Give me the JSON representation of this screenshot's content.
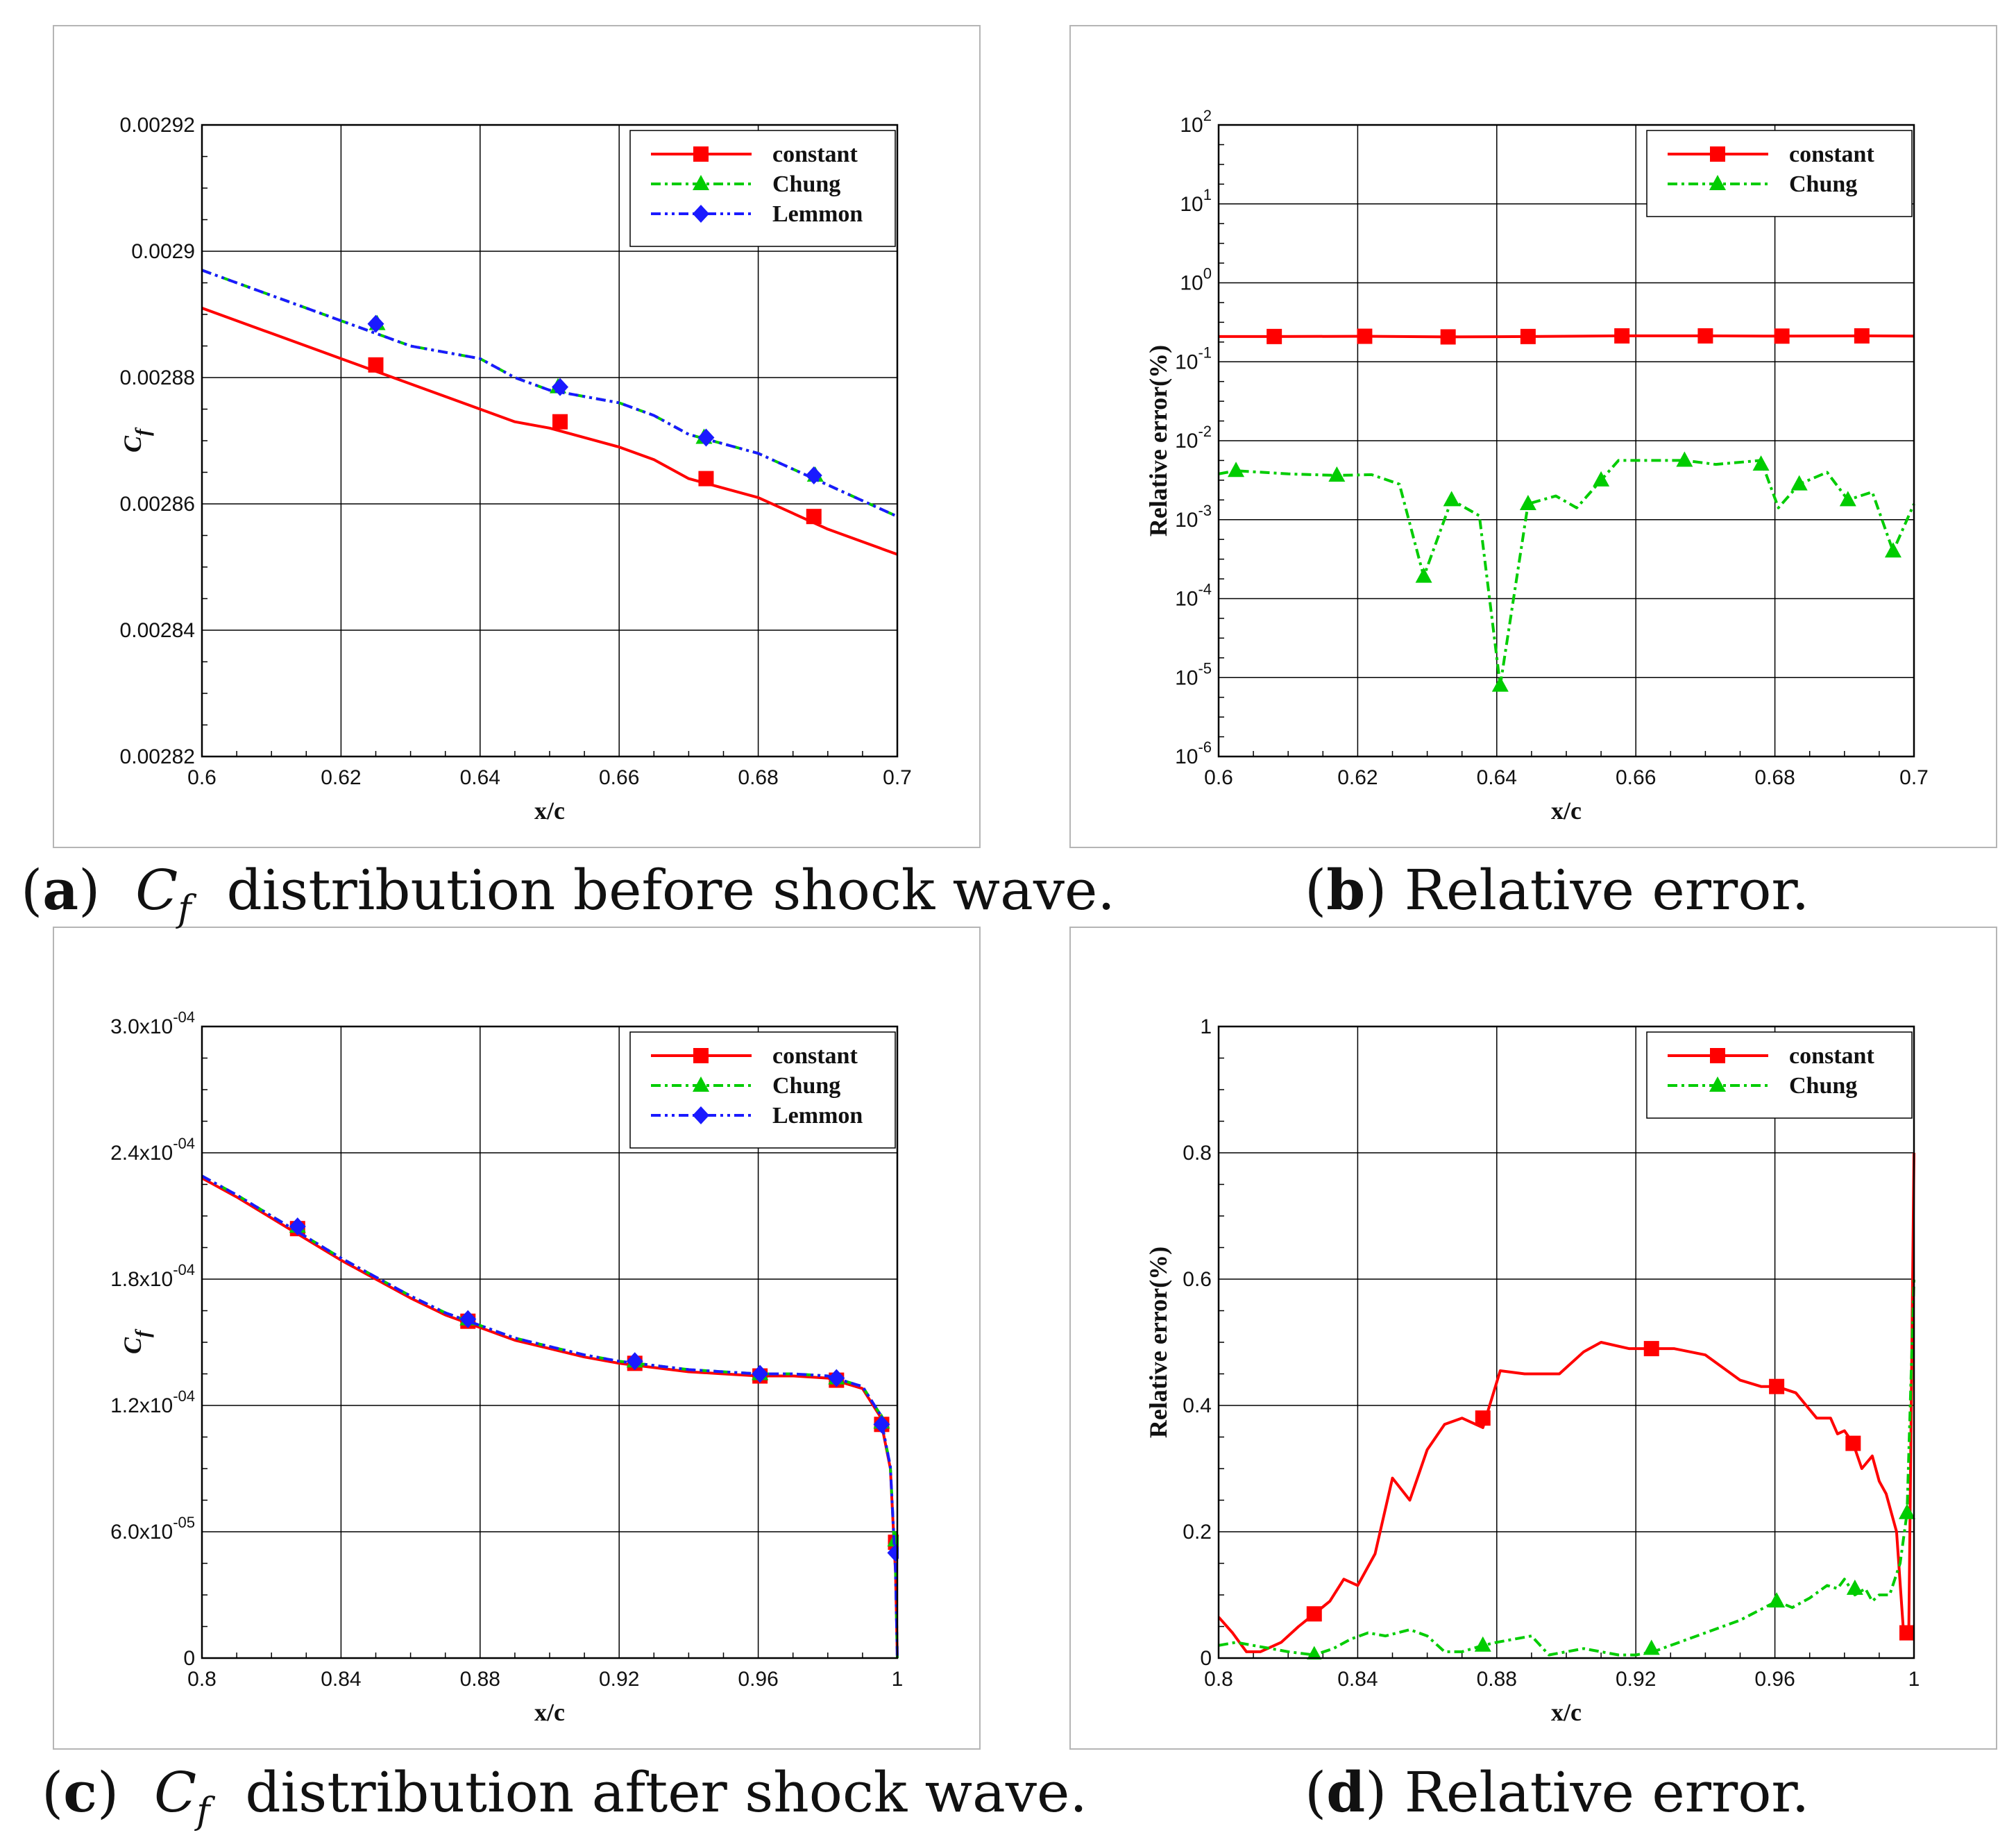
{
  "captions": [
    {
      "letter": "a",
      "sym": "C",
      "sub": "f",
      "text": "distribution before shock wave."
    },
    {
      "letter": "b",
      "text": "Relative error."
    },
    {
      "letter": "c",
      "sym": "C",
      "sub": "f",
      "text": "distribution after shock wave."
    },
    {
      "letter": "d",
      "text": "Relative error."
    }
  ],
  "colors": {
    "constant": "#ff0000",
    "Chung": "#00cc00",
    "Lemmon": "#1a1aff"
  },
  "chart_data": [
    {
      "id": "a",
      "type": "line",
      "xlabel": "x/c",
      "ylabel": "C",
      "ylabel_sub": "f",
      "xlim": [
        0.6,
        0.7
      ],
      "ylim": [
        0.00282,
        0.00292
      ],
      "xticks": [
        0.6,
        0.62,
        0.64,
        0.66,
        0.68,
        0.7
      ],
      "xtick_labels": [
        "0.6",
        "0.62",
        "0.64",
        "0.66",
        "0.68",
        "0.7"
      ],
      "yticks": [
        0.00282,
        0.00284,
        0.00286,
        0.00288,
        0.0029,
        0.00292
      ],
      "ytick_labels": [
        "0.00282",
        "0.00284",
        "0.00286",
        "0.00288",
        "0.0029",
        "0.00292"
      ],
      "legend": [
        "constant",
        "Chung",
        "Lemmon"
      ],
      "series": [
        {
          "name": "constant",
          "marker": "square",
          "dash": "",
          "x": [
            0.6,
            0.61,
            0.62,
            0.63,
            0.64,
            0.645,
            0.65,
            0.66,
            0.665,
            0.67,
            0.68,
            0.69,
            0.7
          ],
          "y": [
            0.002891,
            0.002887,
            0.002883,
            0.002879,
            0.002875,
            0.002873,
            0.002872,
            0.002869,
            0.002867,
            0.002864,
            0.002861,
            0.002856,
            0.002852
          ],
          "mx": [
            0.625,
            0.6515,
            0.6725,
            0.688
          ],
          "my": [
            0.002882,
            0.002873,
            0.002864,
            0.002858
          ]
        },
        {
          "name": "Chung",
          "marker": "triangle",
          "dash": "14 6 4 6",
          "x": [
            0.6,
            0.61,
            0.62,
            0.63,
            0.64,
            0.645,
            0.65,
            0.66,
            0.665,
            0.67,
            0.68,
            0.69,
            0.7
          ],
          "y": [
            0.002897,
            0.002893,
            0.002889,
            0.002885,
            0.002883,
            0.00288,
            0.002878,
            0.002876,
            0.002874,
            0.002871,
            0.002868,
            0.002863,
            0.002858
          ],
          "mx": [
            0.6252,
            0.6512,
            0.6722,
            0.6882
          ],
          "my": [
            0.0028885,
            0.0028785,
            0.0028705,
            0.0028645
          ]
        },
        {
          "name": "Lemmon",
          "marker": "diamond",
          "dash": "14 6 4 6 4 6",
          "x": [
            0.6,
            0.61,
            0.62,
            0.63,
            0.64,
            0.645,
            0.65,
            0.66,
            0.665,
            0.67,
            0.68,
            0.69,
            0.7
          ],
          "y": [
            0.002897,
            0.002893,
            0.002889,
            0.002885,
            0.002883,
            0.00288,
            0.002878,
            0.002876,
            0.002874,
            0.002871,
            0.002868,
            0.002863,
            0.002858
          ],
          "mx": [
            0.625,
            0.6515,
            0.6725,
            0.688
          ],
          "my": [
            0.0028885,
            0.0028785,
            0.0028705,
            0.0028645
          ]
        }
      ]
    },
    {
      "id": "b",
      "type": "line",
      "yscale": "log",
      "xlabel": "x/c",
      "ylabel": "Relative error(%)",
      "xlim": [
        0.6,
        0.7
      ],
      "ylim": [
        -6,
        2
      ],
      "xticks": [
        0.6,
        0.62,
        0.64,
        0.66,
        0.68,
        0.7
      ],
      "xtick_labels": [
        "0.6",
        "0.62",
        "0.64",
        "0.66",
        "0.68",
        "0.7"
      ],
      "yticks": [
        -6,
        -5,
        -4,
        -3,
        -2,
        -1,
        0,
        1,
        2
      ],
      "ytick_base": "10",
      "ytick_exponents": [
        "-6",
        "-5",
        "-4",
        "-3",
        "-2",
        "-1",
        "0",
        "1",
        "2"
      ],
      "legend": [
        "constant",
        "Chung"
      ],
      "series": [
        {
          "name": "constant",
          "marker": "square",
          "dash": "",
          "x": [
            0.6,
            0.608,
            0.621,
            0.633,
            0.6445,
            0.658,
            0.67,
            0.681,
            0.6925,
            0.7
          ],
          "y": [
            -0.68,
            -0.68,
            -0.677,
            -0.685,
            -0.68,
            -0.672,
            -0.672,
            -0.675,
            -0.672,
            -0.675
          ],
          "mx": [
            0.608,
            0.621,
            0.633,
            0.6445,
            0.658,
            0.67,
            0.681,
            0.6925
          ],
          "my": [
            -0.68,
            -0.677,
            -0.685,
            -0.68,
            -0.672,
            -0.672,
            -0.675,
            -0.672
          ]
        },
        {
          "name": "Chung",
          "marker": "triangle",
          "dash": "14 6 4 6",
          "x": [
            0.6,
            0.6025,
            0.61,
            0.617,
            0.622,
            0.626,
            0.6295,
            0.6335,
            0.6375,
            0.6405,
            0.6445,
            0.6485,
            0.6515,
            0.655,
            0.6575,
            0.662,
            0.667,
            0.6715,
            0.678,
            0.6805,
            0.6835,
            0.6875,
            0.6905,
            0.694,
            0.697,
            0.7
          ],
          "y": [
            -2.42,
            -2.38,
            -2.42,
            -2.44,
            -2.43,
            -2.55,
            -3.72,
            -2.75,
            -2.95,
            -5.1,
            -2.8,
            -2.7,
            -2.85,
            -2.5,
            -2.25,
            -2.25,
            -2.25,
            -2.3,
            -2.25,
            -2.85,
            -2.55,
            -2.4,
            -2.75,
            -2.65,
            -3.4,
            -2.8
          ],
          "mx": [
            0.6025,
            0.617,
            0.6295,
            0.6335,
            0.6405,
            0.6445,
            0.655,
            0.667,
            0.678,
            0.6835,
            0.6905,
            0.697
          ],
          "my": [
            -2.38,
            -2.44,
            -3.72,
            -2.75,
            -5.1,
            -2.8,
            -2.5,
            -2.25,
            -2.3,
            -2.55,
            -2.75,
            -3.4
          ]
        }
      ]
    },
    {
      "id": "c",
      "type": "line",
      "xlabel": "x/c",
      "ylabel": "C",
      "ylabel_sub": "f",
      "xlim": [
        0.8,
        1.0
      ],
      "ylim": [
        0,
        0.0003
      ],
      "xticks": [
        0.8,
        0.84,
        0.88,
        0.92,
        0.96,
        1.0
      ],
      "xtick_labels": [
        "0.8",
        "0.84",
        "0.88",
        "0.92",
        "0.96",
        "1"
      ],
      "yticks": [
        0,
        6e-05,
        0.00012,
        0.00018,
        0.00024,
        0.0003
      ],
      "ytick_labels": [
        "0",
        "6.0x10",
        "1.2x10",
        "1.8x10",
        "2.4x10",
        "3.0x10"
      ],
      "ytick_exponents": [
        "",
        "-05",
        "-04",
        "-04",
        "-04",
        "-04"
      ],
      "legend": [
        "constant",
        "Chung",
        "Lemmon"
      ],
      "series": [
        {
          "name": "constant",
          "marker": "square",
          "dash": "",
          "x": [
            0.8,
            0.81,
            0.82,
            0.83,
            0.84,
            0.85,
            0.86,
            0.87,
            0.88,
            0.89,
            0.9,
            0.91,
            0.92,
            0.93,
            0.94,
            0.95,
            0.96,
            0.97,
            0.98,
            0.99,
            0.995,
            0.998,
            0.9995,
            1.0
          ],
          "y": [
            0.000228,
            0.000219,
            0.000209,
            0.000199,
            0.000189,
            0.00018,
            0.000171,
            0.000163,
            0.000157,
            0.000151,
            0.000147,
            0.000143,
            0.00014,
            0.000138,
            0.000136,
            0.000135,
            0.000134,
            0.000134,
            0.000133,
            0.000128,
            0.000115,
            9e-05,
            4e-05,
            0.0
          ],
          "mx": [
            0.8275,
            0.8765,
            0.9245,
            0.9605,
            0.9825,
            0.9955,
            0.9995
          ],
          "my": [
            0.000204,
            0.00016,
            0.00014,
            0.000134,
            0.000132,
            0.000111,
            5.5e-05
          ]
        },
        {
          "name": "Chung",
          "marker": "triangle",
          "dash": "14 6 4 6",
          "x": [
            0.8,
            0.81,
            0.82,
            0.83,
            0.84,
            0.85,
            0.86,
            0.87,
            0.88,
            0.89,
            0.9,
            0.91,
            0.92,
            0.93,
            0.94,
            0.95,
            0.96,
            0.97,
            0.98,
            0.99,
            0.995,
            0.998,
            0.9995,
            1.0
          ],
          "y": [
            0.000229,
            0.00022,
            0.00021,
            0.0002,
            0.00019,
            0.000181,
            0.000172,
            0.000164,
            0.000158,
            0.000152,
            0.000148,
            0.000144,
            0.000141,
            0.000139,
            0.000137,
            0.000136,
            0.000135,
            0.000135,
            0.000134,
            0.000129,
            0.000116,
            9.1e-05,
            4.1e-05,
            0.0
          ],
          "mx": [
            0.8275,
            0.8765,
            0.9245,
            0.9605,
            0.9825,
            0.9955,
            0.9995
          ],
          "my": [
            0.000205,
            0.000161,
            0.000141,
            0.000135,
            0.000133,
            0.000112,
            5.6e-05
          ]
        },
        {
          "name": "Lemmon",
          "marker": "diamond",
          "dash": "14 6 4 6 4 6",
          "x": [
            0.8,
            0.81,
            0.82,
            0.83,
            0.84,
            0.85,
            0.86,
            0.87,
            0.88,
            0.89,
            0.9,
            0.91,
            0.92,
            0.93,
            0.94,
            0.95,
            0.96,
            0.97,
            0.98,
            0.99,
            0.995,
            0.998,
            0.9995,
            1.0
          ],
          "y": [
            0.000229,
            0.00022,
            0.00021,
            0.0002,
            0.00019,
            0.000181,
            0.000172,
            0.000164,
            0.000158,
            0.000152,
            0.000148,
            0.000144,
            0.000141,
            0.000139,
            0.000137,
            0.000136,
            0.000135,
            0.000135,
            0.000134,
            0.000129,
            0.000116,
            9.1e-05,
            4.1e-05,
            0.0
          ],
          "mx": [
            0.8275,
            0.8765,
            0.9245,
            0.9605,
            0.9825,
            0.9955,
            0.9995
          ],
          "my": [
            0.000205,
            0.000161,
            0.000141,
            0.000135,
            0.000133,
            0.000111,
            5e-05
          ]
        }
      ]
    },
    {
      "id": "d",
      "type": "line",
      "xlabel": "x/c",
      "ylabel": "Relative error(%)",
      "xlim": [
        0.8,
        1.0
      ],
      "ylim": [
        0,
        1
      ],
      "xticks": [
        0.8,
        0.84,
        0.88,
        0.92,
        0.96,
        1.0
      ],
      "xtick_labels": [
        "0.8",
        "0.84",
        "0.88",
        "0.92",
        "0.96",
        "1"
      ],
      "yticks": [
        0,
        0.2,
        0.4,
        0.6,
        0.8,
        1.0
      ],
      "ytick_labels": [
        "0",
        "0.2",
        "0.4",
        "0.6",
        "0.8",
        "1"
      ],
      "legend": [
        "constant",
        "Chung"
      ],
      "series": [
        {
          "name": "constant",
          "marker": "square",
          "dash": "",
          "x": [
            0.8,
            0.804,
            0.808,
            0.812,
            0.818,
            0.823,
            0.8275,
            0.832,
            0.836,
            0.84,
            0.845,
            0.85,
            0.855,
            0.86,
            0.865,
            0.87,
            0.876,
            0.881,
            0.888,
            0.893,
            0.898,
            0.905,
            0.91,
            0.918,
            0.9245,
            0.931,
            0.94,
            0.95,
            0.956,
            0.9605,
            0.966,
            0.972,
            0.976,
            0.978,
            0.98,
            0.9825,
            0.985,
            0.988,
            0.99,
            0.992,
            0.995,
            0.997,
            0.9985,
            1.0
          ],
          "y": [
            0.065,
            0.04,
            0.01,
            0.01,
            0.025,
            0.05,
            0.07,
            0.09,
            0.125,
            0.115,
            0.165,
            0.285,
            0.25,
            0.33,
            0.37,
            0.38,
            0.365,
            0.455,
            0.45,
            0.45,
            0.45,
            0.485,
            0.5,
            0.49,
            0.49,
            0.49,
            0.48,
            0.44,
            0.43,
            0.43,
            0.42,
            0.38,
            0.38,
            0.355,
            0.36,
            0.34,
            0.3,
            0.32,
            0.28,
            0.26,
            0.2,
            0.04,
            0.04,
            0.8
          ],
          "mx": [
            0.8275,
            0.876,
            0.9245,
            0.9605,
            0.9825,
            0.998
          ],
          "my": [
            0.07,
            0.38,
            0.49,
            0.43,
            0.34,
            0.04
          ]
        },
        {
          "name": "Chung",
          "marker": "triangle",
          "dash": "14 6 4 6",
          "x": [
            0.8,
            0.805,
            0.81,
            0.815,
            0.82,
            0.8275,
            0.833,
            0.838,
            0.843,
            0.848,
            0.855,
            0.86,
            0.865,
            0.87,
            0.876,
            0.88,
            0.885,
            0.89,
            0.895,
            0.9,
            0.905,
            0.91,
            0.915,
            0.92,
            0.925,
            0.93,
            0.94,
            0.95,
            0.9605,
            0.965,
            0.97,
            0.975,
            0.978,
            0.98,
            0.983,
            0.986,
            0.988,
            0.99,
            0.993,
            0.996,
            0.998,
            1.0
          ],
          "y": [
            0.02,
            0.025,
            0.02,
            0.015,
            0.01,
            0.005,
            0.015,
            0.03,
            0.04,
            0.035,
            0.045,
            0.035,
            0.01,
            0.01,
            0.02,
            0.025,
            0.03,
            0.035,
            0.005,
            0.01,
            0.015,
            0.01,
            0.005,
            0.005,
            0.01,
            0.02,
            0.04,
            0.06,
            0.09,
            0.08,
            0.095,
            0.115,
            0.11,
            0.125,
            0.1,
            0.11,
            0.09,
            0.1,
            0.1,
            0.15,
            0.23,
            0.6
          ],
          "mx": [
            0.8275,
            0.876,
            0.9245,
            0.9605,
            0.983,
            0.998
          ],
          "my": [
            0.005,
            0.02,
            0.015,
            0.09,
            0.11,
            0.23
          ]
        }
      ]
    }
  ]
}
